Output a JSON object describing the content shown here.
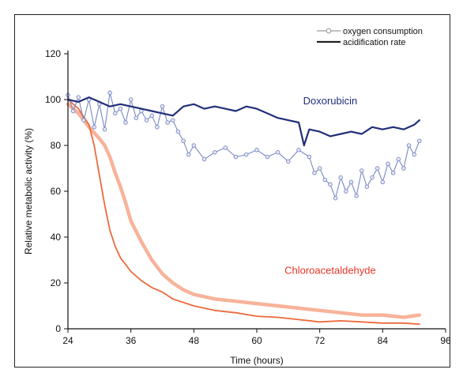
{
  "chart_data": {
    "type": "line",
    "xlabel": "Time (hours)",
    "ylabel": "Relative metabolic activity (%)",
    "xlim": [
      24,
      96
    ],
    "ylim": [
      0,
      120
    ],
    "xticks": [
      24,
      36,
      48,
      60,
      72,
      84,
      96
    ],
    "yticks": [
      0,
      20,
      40,
      60,
      80,
      100,
      120
    ],
    "legend": {
      "placement": "top-right",
      "entries": [
        {
          "label": "oxygen consumption",
          "style": "line-with-circles"
        },
        {
          "label": "acidification rate",
          "style": "solid-line"
        }
      ]
    },
    "annotations": [
      {
        "text": "Doxorubicin",
        "color": "#1f2f7a",
        "x": 74,
        "y": 98
      },
      {
        "text": "Chloroacetaldehyde",
        "color": "#e8352a",
        "x": 74,
        "y": 24
      }
    ],
    "colors": {
      "dox_acid": "#1f2f7a",
      "dox_oxygen": "#7a88c4",
      "caa_acid": "#ec6a3c",
      "caa_oxygen": "#f7b39a"
    },
    "series": [
      {
        "group": "Doxorubicin",
        "metric": "acidification rate",
        "x": [
          24,
          26,
          28,
          30,
          32,
          34,
          36,
          38,
          40,
          42,
          44,
          46,
          48,
          50,
          52,
          54,
          56,
          58,
          60,
          62,
          64,
          66,
          68,
          69,
          70,
          72,
          74,
          76,
          78,
          80,
          82,
          84,
          86,
          88,
          90,
          91
        ],
        "y": [
          100,
          99,
          101,
          99,
          97,
          98,
          97,
          96,
          95,
          94,
          93,
          97,
          98,
          96,
          97,
          96,
          95,
          97,
          96,
          94,
          92,
          91,
          90,
          80,
          87,
          86,
          84,
          85,
          86,
          85,
          88,
          87,
          88,
          87,
          89,
          91
        ]
      },
      {
        "group": "Doxorubicin",
        "metric": "oxygen consumption",
        "x": [
          24,
          25,
          26,
          27,
          28,
          29,
          30,
          31,
          32,
          33,
          34,
          35,
          36,
          37,
          38,
          39,
          40,
          41,
          42,
          43,
          44,
          45,
          46,
          47,
          48,
          50,
          52,
          54,
          56,
          58,
          60,
          62,
          64,
          66,
          68,
          70,
          71,
          72,
          73,
          74,
          75,
          76,
          77,
          78,
          79,
          80,
          81,
          82,
          83,
          84,
          85,
          86,
          87,
          88,
          89,
          90,
          91
        ],
        "y": [
          102,
          95,
          101,
          91,
          100,
          88,
          98,
          87,
          103,
          94,
          96,
          90,
          100,
          92,
          95,
          91,
          93,
          88,
          97,
          90,
          91,
          86,
          82,
          76,
          80,
          74,
          77,
          79,
          75,
          76,
          78,
          75,
          77,
          73,
          78,
          75,
          68,
          70,
          65,
          63,
          57,
          66,
          60,
          64,
          58,
          69,
          62,
          66,
          70,
          64,
          72,
          68,
          74,
          70,
          80,
          76,
          82
        ]
      },
      {
        "group": "Chloroacetaldehyde",
        "metric": "acidification rate",
        "x": [
          24,
          26,
          28,
          29,
          30,
          31,
          32,
          33,
          34,
          36,
          38,
          40,
          42,
          44,
          48,
          52,
          56,
          60,
          64,
          68,
          72,
          76,
          80,
          84,
          88,
          91
        ],
        "y": [
          100,
          96,
          89,
          80,
          67,
          54,
          43,
          36,
          31,
          25,
          21,
          18,
          16,
          13,
          10,
          8,
          7,
          5.5,
          5,
          4,
          3,
          3.5,
          3,
          2.5,
          2.5,
          2
        ]
      },
      {
        "group": "Chloroacetaldehyde",
        "metric": "oxygen consumption",
        "x": [
          24,
          26,
          28,
          30,
          31,
          32,
          33,
          34,
          35,
          36,
          38,
          40,
          42,
          44,
          46,
          48,
          52,
          56,
          60,
          64,
          68,
          72,
          76,
          80,
          84,
          88,
          91
        ],
        "y": [
          98,
          94,
          88,
          83,
          80,
          75,
          68,
          62,
          55,
          47,
          38,
          30,
          24,
          20,
          17,
          15,
          13,
          12,
          11,
          10,
          9,
          8,
          7,
          6,
          6,
          5,
          6
        ]
      }
    ]
  }
}
